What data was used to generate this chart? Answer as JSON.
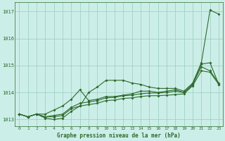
{
  "x": [
    0,
    1,
    2,
    3,
    4,
    5,
    6,
    7,
    8,
    9,
    10,
    11,
    12,
    13,
    14,
    15,
    16,
    17,
    18,
    19,
    20,
    21,
    22,
    23
  ],
  "line_high": [
    1013.2,
    1013.1,
    1013.2,
    1013.1,
    1013.1,
    1013.15,
    1013.4,
    1013.5,
    1014.0,
    1014.2,
    1014.45,
    1014.45,
    1014.45,
    1014.35,
    1014.3,
    1014.2,
    1014.15,
    1014.15,
    1014.15,
    1014.05,
    1014.35,
    1015.1,
    1017.05,
    1016.9
  ],
  "line_mid1": [
    1013.2,
    1013.1,
    1013.2,
    1013.2,
    1013.35,
    1013.5,
    1013.75,
    1014.1,
    1013.7,
    1013.75,
    1013.85,
    1013.85,
    1013.9,
    1013.95,
    1014.05,
    1014.05,
    1014.0,
    1014.05,
    1014.1,
    1014.0,
    1014.3,
    1015.05,
    1015.1,
    1014.3
  ],
  "line_mid2": [
    1013.2,
    1013.1,
    1013.2,
    1013.1,
    1013.15,
    1013.2,
    1013.45,
    1013.6,
    1013.65,
    1013.7,
    1013.8,
    1013.82,
    1013.88,
    1013.9,
    1013.95,
    1013.98,
    1013.98,
    1014.0,
    1014.05,
    1014.0,
    1014.3,
    1014.95,
    1014.8,
    1014.35
  ],
  "line_base": [
    1013.2,
    1013.1,
    1013.2,
    1013.05,
    1013.0,
    1013.05,
    1013.3,
    1013.5,
    1013.55,
    1013.6,
    1013.7,
    1013.72,
    1013.78,
    1013.8,
    1013.85,
    1013.88,
    1013.88,
    1013.9,
    1013.92,
    1013.95,
    1014.25,
    1014.8,
    1014.75,
    1014.3
  ],
  "background_color": "#cceee8",
  "grid_color": "#99ccbb",
  "line_color": "#2d6a2d",
  "title": "Graphe pression niveau de la mer (hPa)",
  "ylim": [
    1012.75,
    1017.35
  ],
  "yticks": [
    1013,
    1014,
    1015,
    1016,
    1017
  ],
  "xlim": [
    -0.5,
    23.5
  ],
  "xticks": [
    0,
    1,
    2,
    3,
    4,
    5,
    6,
    7,
    8,
    9,
    10,
    11,
    12,
    13,
    14,
    15,
    16,
    17,
    18,
    19,
    20,
    21,
    22,
    23
  ]
}
